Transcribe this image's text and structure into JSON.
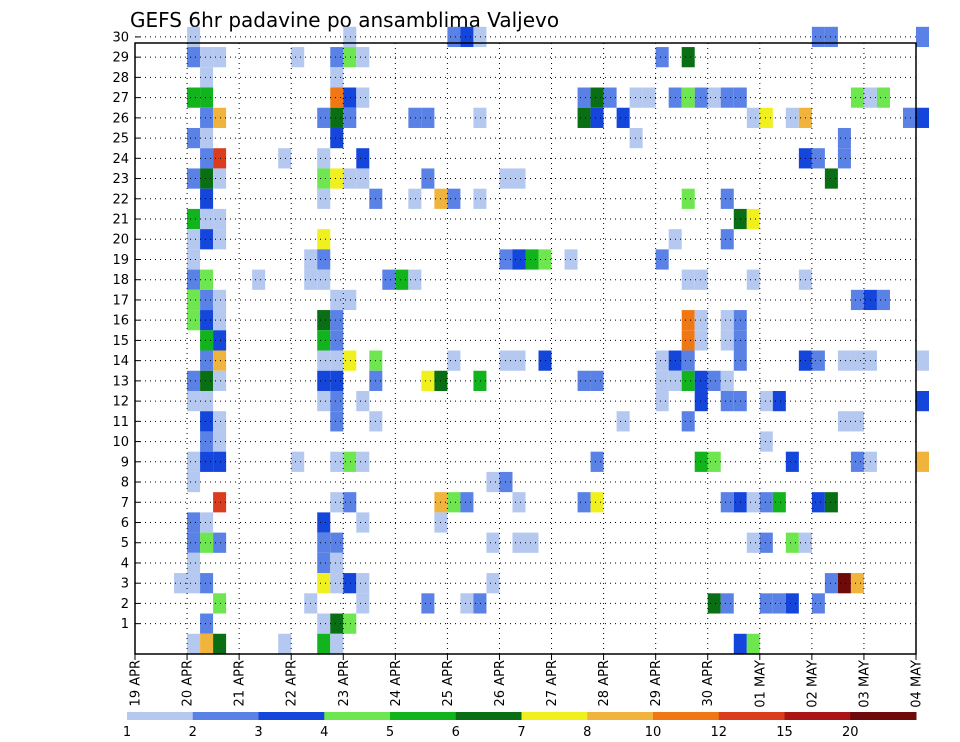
{
  "chart_data": {
    "type": "heatmap",
    "title": "GEFS 6hr padavine po ansamblima Valjevo",
    "xlabel": "",
    "ylabel": "",
    "x_tick_labels": [
      "19 APR",
      "20 APR",
      "21 APR",
      "22 APR",
      "23 APR",
      "24 APR",
      "25 APR",
      "26 APR",
      "27 APR",
      "28 APR",
      "29 APR",
      "30 APR",
      "01 MAY",
      "02 MAY",
      "03 MAY",
      "04 MAY"
    ],
    "x_range_days": [
      0,
      15
    ],
    "time_step_hours": 6,
    "y_tick_labels": [
      "1",
      "2",
      "3",
      "4",
      "5",
      "6",
      "7",
      "8",
      "9",
      "10",
      "11",
      "12",
      "13",
      "14",
      "15",
      "16",
      "17",
      "18",
      "19",
      "20",
      "21",
      "22",
      "23",
      "24",
      "25",
      "26",
      "27",
      "28",
      "29",
      "30"
    ],
    "y_range": [
      0,
      30
    ],
    "grid": true,
    "colorbar": {
      "labels": [
        "1",
        "2",
        "3",
        "4",
        "5",
        "6",
        "7",
        "8",
        "10",
        "12",
        "15",
        "20"
      ],
      "colors": [
        "#b4c8f0",
        "#5a82e6",
        "#1446dc",
        "#6ee650",
        "#12b41e",
        "#0a6e14",
        "#f0f01e",
        "#f0b43c",
        "#f07814",
        "#dc3c1e",
        "#aa1414",
        "#6e0a0a"
      ]
    },
    "cells_note": "each cell: [day_offset_from_19APR_00UTC, member, color_class_index]",
    "cells": [
      [
        1.0,
        30,
        0
      ],
      [
        4.0,
        30,
        0
      ],
      [
        6.0,
        30,
        1
      ],
      [
        6.25,
        30,
        2
      ],
      [
        6.5,
        30,
        0
      ],
      [
        13.0,
        30,
        1
      ],
      [
        13.25,
        30,
        1
      ],
      [
        15.0,
        30,
        1
      ],
      [
        1.0,
        29,
        1
      ],
      [
        1.25,
        29,
        0
      ],
      [
        1.5,
        29,
        0
      ],
      [
        3.0,
        29,
        0
      ],
      [
        3.75,
        29,
        1
      ],
      [
        4.0,
        29,
        3
      ],
      [
        4.25,
        29,
        0
      ],
      [
        10.0,
        29,
        1
      ],
      [
        10.5,
        29,
        5
      ],
      [
        1.25,
        28,
        0
      ],
      [
        3.75,
        28,
        0
      ],
      [
        1.0,
        27,
        4
      ],
      [
        1.25,
        27,
        4
      ],
      [
        3.75,
        27,
        8
      ],
      [
        4.0,
        27,
        2
      ],
      [
        4.25,
        27,
        0
      ],
      [
        8.5,
        27,
        1
      ],
      [
        8.75,
        27,
        5
      ],
      [
        9.0,
        27,
        1
      ],
      [
        9.5,
        27,
        0
      ],
      [
        9.75,
        27,
        0
      ],
      [
        10.25,
        27,
        1
      ],
      [
        10.5,
        27,
        3
      ],
      [
        10.75,
        27,
        1
      ],
      [
        11.0,
        27,
        0
      ],
      [
        11.25,
        27,
        1
      ],
      [
        11.5,
        27,
        1
      ],
      [
        13.75,
        27,
        3
      ],
      [
        14.0,
        27,
        0
      ],
      [
        14.25,
        27,
        3
      ],
      [
        1.25,
        26,
        1
      ],
      [
        1.5,
        26,
        7
      ],
      [
        3.5,
        26,
        1
      ],
      [
        3.75,
        26,
        5
      ],
      [
        4.0,
        26,
        1
      ],
      [
        5.25,
        26,
        1
      ],
      [
        5.5,
        26,
        1
      ],
      [
        6.5,
        26,
        0
      ],
      [
        8.5,
        26,
        5
      ],
      [
        8.75,
        26,
        2
      ],
      [
        9.25,
        26,
        2
      ],
      [
        11.75,
        26,
        0
      ],
      [
        12.0,
        26,
        6
      ],
      [
        12.5,
        26,
        0
      ],
      [
        12.75,
        26,
        7
      ],
      [
        14.75,
        26,
        1
      ],
      [
        15.0,
        26,
        2
      ],
      [
        1.0,
        25,
        1
      ],
      [
        1.25,
        25,
        0
      ],
      [
        3.75,
        25,
        2
      ],
      [
        9.5,
        25,
        0
      ],
      [
        13.5,
        25,
        1
      ],
      [
        1.25,
        24,
        1
      ],
      [
        1.5,
        24,
        9
      ],
      [
        2.75,
        24,
        0
      ],
      [
        3.5,
        24,
        0
      ],
      [
        4.25,
        24,
        2
      ],
      [
        12.75,
        24,
        2
      ],
      [
        13.0,
        24,
        1
      ],
      [
        13.5,
        24,
        1
      ],
      [
        1.0,
        23,
        1
      ],
      [
        1.25,
        23,
        5
      ],
      [
        1.5,
        23,
        0
      ],
      [
        3.5,
        23,
        3
      ],
      [
        3.75,
        23,
        6
      ],
      [
        4.0,
        23,
        0
      ],
      [
        4.25,
        23,
        0
      ],
      [
        5.5,
        23,
        1
      ],
      [
        7.0,
        23,
        0
      ],
      [
        7.25,
        23,
        0
      ],
      [
        13.25,
        23,
        5
      ],
      [
        1.25,
        22,
        2
      ],
      [
        3.5,
        22,
        0
      ],
      [
        4.5,
        22,
        1
      ],
      [
        5.25,
        22,
        0
      ],
      [
        5.75,
        22,
        7
      ],
      [
        6.0,
        22,
        1
      ],
      [
        6.5,
        22,
        0
      ],
      [
        10.5,
        22,
        3
      ],
      [
        11.25,
        22,
        1
      ],
      [
        1.0,
        21,
        4
      ],
      [
        1.25,
        21,
        0
      ],
      [
        1.5,
        21,
        0
      ],
      [
        11.5,
        21,
        5
      ],
      [
        11.75,
        21,
        6
      ],
      [
        1.0,
        20,
        0
      ],
      [
        1.25,
        20,
        2
      ],
      [
        1.5,
        20,
        0
      ],
      [
        3.5,
        20,
        6
      ],
      [
        10.25,
        20,
        0
      ],
      [
        11.25,
        20,
        1
      ],
      [
        1.0,
        19,
        0
      ],
      [
        3.25,
        19,
        0
      ],
      [
        3.5,
        19,
        1
      ],
      [
        7.0,
        19,
        1
      ],
      [
        7.25,
        19,
        2
      ],
      [
        7.5,
        19,
        4
      ],
      [
        7.75,
        19,
        3
      ],
      [
        8.25,
        19,
        0
      ],
      [
        10.0,
        19,
        1
      ],
      [
        1.0,
        18,
        1
      ],
      [
        1.25,
        18,
        3
      ],
      [
        2.25,
        18,
        0
      ],
      [
        3.25,
        18,
        0
      ],
      [
        3.5,
        18,
        0
      ],
      [
        4.75,
        18,
        1
      ],
      [
        5.0,
        18,
        4
      ],
      [
        5.25,
        18,
        0
      ],
      [
        10.5,
        18,
        0
      ],
      [
        10.75,
        18,
        0
      ],
      [
        11.75,
        18,
        0
      ],
      [
        12.75,
        18,
        0
      ],
      [
        1.0,
        17,
        3
      ],
      [
        1.25,
        17,
        1
      ],
      [
        1.5,
        17,
        0
      ],
      [
        3.75,
        17,
        0
      ],
      [
        4.0,
        17,
        0
      ],
      [
        13.75,
        17,
        1
      ],
      [
        14.0,
        17,
        2
      ],
      [
        14.25,
        17,
        1
      ],
      [
        1.0,
        16,
        3
      ],
      [
        1.25,
        16,
        2
      ],
      [
        1.5,
        16,
        0
      ],
      [
        3.5,
        16,
        5
      ],
      [
        3.75,
        16,
        1
      ],
      [
        10.5,
        16,
        8
      ],
      [
        10.75,
        16,
        0
      ],
      [
        11.25,
        16,
        0
      ],
      [
        11.5,
        16,
        1
      ],
      [
        1.25,
        15,
        4
      ],
      [
        1.5,
        15,
        2
      ],
      [
        3.5,
        15,
        4
      ],
      [
        3.75,
        15,
        1
      ],
      [
        10.5,
        15,
        8
      ],
      [
        10.75,
        15,
        0
      ],
      [
        11.25,
        15,
        0
      ],
      [
        11.5,
        15,
        1
      ],
      [
        1.25,
        14,
        1
      ],
      [
        1.5,
        14,
        7
      ],
      [
        3.5,
        14,
        0
      ],
      [
        3.75,
        14,
        0
      ],
      [
        4.0,
        14,
        6
      ],
      [
        4.5,
        14,
        3
      ],
      [
        6.0,
        14,
        0
      ],
      [
        7.0,
        14,
        0
      ],
      [
        7.25,
        14,
        0
      ],
      [
        7.75,
        14,
        2
      ],
      [
        10.0,
        14,
        0
      ],
      [
        10.25,
        14,
        2
      ],
      [
        10.5,
        14,
        1
      ],
      [
        11.5,
        14,
        1
      ],
      [
        12.75,
        14,
        2
      ],
      [
        13.0,
        14,
        1
      ],
      [
        13.5,
        14,
        0
      ],
      [
        13.75,
        14,
        0
      ],
      [
        14.0,
        14,
        0
      ],
      [
        15.0,
        14,
        0
      ],
      [
        1.0,
        13,
        1
      ],
      [
        1.25,
        13,
        5
      ],
      [
        1.5,
        13,
        0
      ],
      [
        3.5,
        13,
        2
      ],
      [
        3.75,
        13,
        2
      ],
      [
        4.5,
        13,
        1
      ],
      [
        5.5,
        13,
        6
      ],
      [
        5.75,
        13,
        5
      ],
      [
        6.5,
        13,
        4
      ],
      [
        8.5,
        13,
        1
      ],
      [
        8.75,
        13,
        1
      ],
      [
        10.0,
        13,
        0
      ],
      [
        10.25,
        13,
        0
      ],
      [
        10.5,
        13,
        4
      ],
      [
        10.75,
        13,
        2
      ],
      [
        11.0,
        13,
        1
      ],
      [
        11.25,
        13,
        0
      ],
      [
        1.0,
        12,
        0
      ],
      [
        1.25,
        12,
        0
      ],
      [
        3.5,
        12,
        0
      ],
      [
        3.75,
        12,
        1
      ],
      [
        4.25,
        12,
        0
      ],
      [
        10.0,
        12,
        0
      ],
      [
        10.75,
        12,
        2
      ],
      [
        11.25,
        12,
        1
      ],
      [
        11.5,
        12,
        1
      ],
      [
        12.0,
        12,
        0
      ],
      [
        12.25,
        12,
        2
      ],
      [
        15.0,
        12,
        2
      ],
      [
        1.25,
        11,
        2
      ],
      [
        1.5,
        11,
        0
      ],
      [
        3.75,
        11,
        1
      ],
      [
        4.5,
        11,
        0
      ],
      [
        9.25,
        11,
        0
      ],
      [
        10.5,
        11,
        1
      ],
      [
        13.5,
        11,
        0
      ],
      [
        13.75,
        11,
        0
      ],
      [
        1.25,
        10,
        1
      ],
      [
        1.5,
        10,
        0
      ],
      [
        12.0,
        10,
        0
      ],
      [
        1.0,
        9,
        0
      ],
      [
        1.25,
        9,
        2
      ],
      [
        1.5,
        9,
        2
      ],
      [
        3.0,
        9,
        0
      ],
      [
        3.75,
        9,
        0
      ],
      [
        4.0,
        9,
        3
      ],
      [
        4.25,
        9,
        0
      ],
      [
        8.75,
        9,
        1
      ],
      [
        10.75,
        9,
        4
      ],
      [
        11.0,
        9,
        3
      ],
      [
        12.5,
        9,
        2
      ],
      [
        13.75,
        9,
        1
      ],
      [
        14.0,
        9,
        0
      ],
      [
        15.0,
        9,
        7
      ],
      [
        1.0,
        8,
        0
      ],
      [
        6.75,
        8,
        0
      ],
      [
        7.0,
        8,
        1
      ],
      [
        1.5,
        7,
        9
      ],
      [
        3.75,
        7,
        0
      ],
      [
        4.0,
        7,
        1
      ],
      [
        5.75,
        7,
        7
      ],
      [
        6.0,
        7,
        3
      ],
      [
        6.25,
        7,
        1
      ],
      [
        7.25,
        7,
        0
      ],
      [
        8.5,
        7,
        1
      ],
      [
        8.75,
        7,
        6
      ],
      [
        11.25,
        7,
        1
      ],
      [
        11.5,
        7,
        2
      ],
      [
        11.75,
        7,
        0
      ],
      [
        12.0,
        7,
        1
      ],
      [
        12.25,
        7,
        4
      ],
      [
        13.0,
        7,
        2
      ],
      [
        13.25,
        7,
        5
      ],
      [
        1.0,
        6,
        1
      ],
      [
        1.25,
        6,
        0
      ],
      [
        3.5,
        6,
        2
      ],
      [
        4.25,
        6,
        0
      ],
      [
        5.75,
        6,
        0
      ],
      [
        1.0,
        5,
        1
      ],
      [
        1.25,
        5,
        3
      ],
      [
        1.5,
        5,
        1
      ],
      [
        3.5,
        5,
        1
      ],
      [
        3.75,
        5,
        1
      ],
      [
        6.75,
        5,
        0
      ],
      [
        7.25,
        5,
        0
      ],
      [
        7.5,
        5,
        0
      ],
      [
        11.75,
        5,
        0
      ],
      [
        12.0,
        5,
        1
      ],
      [
        12.5,
        5,
        3
      ],
      [
        12.75,
        5,
        0
      ],
      [
        1.0,
        4,
        0
      ],
      [
        3.5,
        4,
        1
      ],
      [
        3.75,
        4,
        0
      ],
      [
        0.75,
        3,
        0
      ],
      [
        1.0,
        3,
        0
      ],
      [
        1.25,
        3,
        1
      ],
      [
        3.5,
        3,
        6
      ],
      [
        3.75,
        3,
        0
      ],
      [
        4.0,
        3,
        2
      ],
      [
        4.25,
        3,
        0
      ],
      [
        6.75,
        3,
        0
      ],
      [
        13.25,
        3,
        1
      ],
      [
        13.5,
        3,
        11
      ],
      [
        13.75,
        3,
        7
      ],
      [
        1.5,
        2,
        3
      ],
      [
        3.25,
        2,
        0
      ],
      [
        4.25,
        2,
        0
      ],
      [
        5.5,
        2,
        1
      ],
      [
        6.25,
        2,
        0
      ],
      [
        6.5,
        2,
        1
      ],
      [
        11.0,
        2,
        5
      ],
      [
        11.25,
        2,
        1
      ],
      [
        12.0,
        2,
        1
      ],
      [
        12.25,
        2,
        1
      ],
      [
        12.5,
        2,
        2
      ],
      [
        13.0,
        2,
        1
      ],
      [
        1.25,
        1,
        1
      ],
      [
        3.5,
        1,
        0
      ],
      [
        3.75,
        1,
        5
      ],
      [
        4.0,
        1,
        3
      ],
      [
        1.0,
        0,
        0
      ],
      [
        1.25,
        0,
        7
      ],
      [
        1.5,
        0,
        5
      ],
      [
        2.75,
        0,
        0
      ],
      [
        3.5,
        0,
        4
      ],
      [
        3.75,
        0,
        0
      ],
      [
        11.5,
        0,
        2
      ],
      [
        11.75,
        0,
        3
      ]
    ]
  }
}
